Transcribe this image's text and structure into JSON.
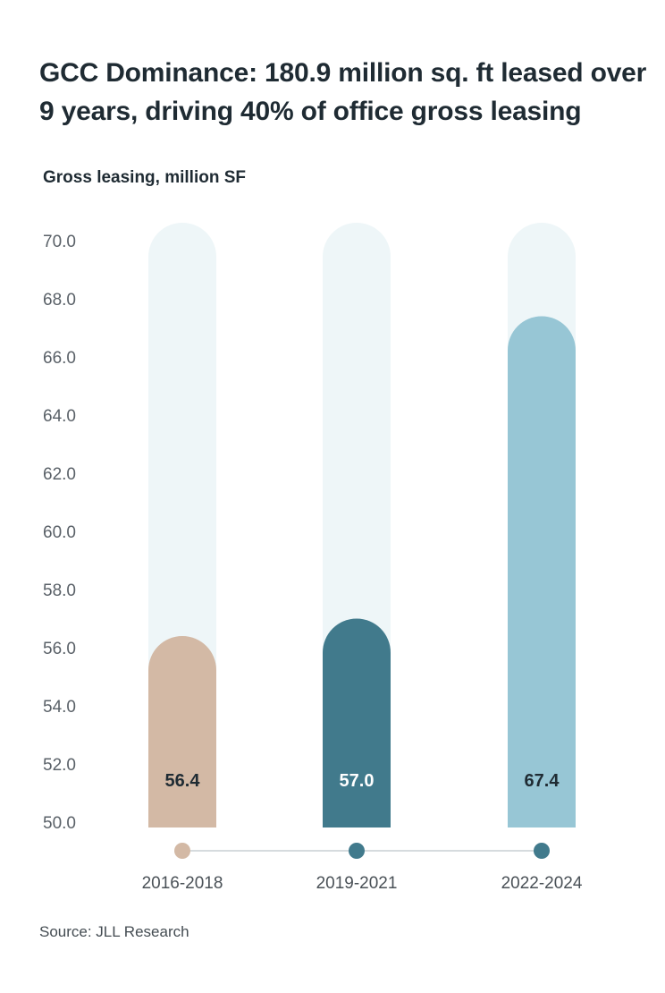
{
  "chart_data": {
    "type": "bar",
    "title": "GCC Dominance: 180.9 million sq. ft leased over 9 years, driving 40% of office gross leasing",
    "ylabel": "Gross leasing, million SF",
    "xlabel": "",
    "categories": [
      "2016-2018",
      "2019-2021",
      "2022-2024"
    ],
    "values": [
      56.4,
      57.0,
      67.4
    ],
    "value_labels": [
      "56.4",
      "57.0",
      "67.4"
    ],
    "ylim": [
      50,
      70
    ],
    "yticks": [
      "50.0",
      "52.0",
      "54.0",
      "56.0",
      "58.0",
      "60.0",
      "62.0",
      "64.0",
      "66.0",
      "68.0",
      "70.0"
    ],
    "bar_colors": [
      "#d3b9a5",
      "#417a8c",
      "#97c6d5"
    ],
    "track_color": "#eef6f8",
    "value_label_colors": [
      "#1f2b33",
      "#ffffff",
      "#1f2b33"
    ],
    "grid": false,
    "legend": "none"
  },
  "source": "Source: JLL Research"
}
